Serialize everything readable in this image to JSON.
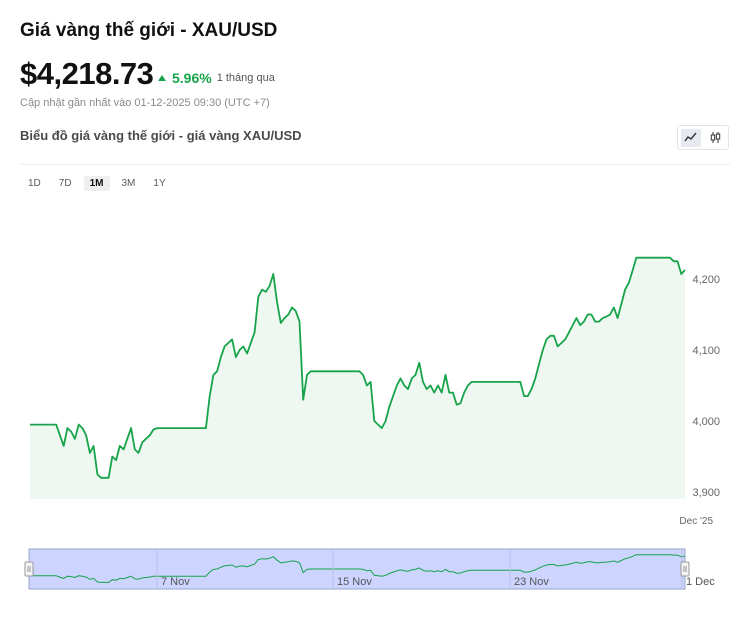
{
  "header": {
    "title": "Giá vàng thế giới - XAU/USD",
    "price": "$4,218.73",
    "change_pct": "5.96%",
    "change_period": "1 tháng qua",
    "updated": "Cập nhật gần nhất vào 01-12-2025 09:30 (UTC +7)"
  },
  "chart_header": {
    "title": "Biểu đồ giá vàng thế giới - giá vàng XAU/USD",
    "view_modes": [
      "line-chart-icon",
      "candlestick-icon"
    ],
    "active_view": "line-chart-icon"
  },
  "ranges": {
    "items": [
      "1D",
      "7D",
      "1M",
      "3M",
      "1Y"
    ],
    "active": "1M"
  },
  "colors": {
    "line": "#16a34a",
    "fill": "#eef8f1",
    "navigator_fill": "#ccd4ff",
    "up": "#16a34a"
  },
  "chart_data": {
    "type": "area",
    "title": "",
    "xlabel": "",
    "ylabel": "",
    "ylim": [
      3900,
      4200
    ],
    "y_ticks": [
      "3,900",
      "4,000",
      "4,100",
      "4,200"
    ],
    "x_tick_labels": [
      "Dec '25"
    ],
    "navigator_labels": [
      "7 Nov",
      "15 Nov",
      "23 Nov",
      "1 Dec"
    ],
    "grid": false,
    "legend": "none",
    "series": [
      {
        "values": [
          3995,
          3995,
          3995,
          3995,
          3995,
          3995,
          3995,
          3995,
          3980,
          3965,
          3990,
          3985,
          3975,
          3995,
          3990,
          3980,
          3955,
          3965,
          3925,
          3920,
          3920,
          3920,
          3950,
          3945,
          3965,
          3960,
          3975,
          3990,
          3960,
          3955,
          3970,
          3975,
          3980,
          3988,
          3990,
          3990,
          3990,
          3990,
          3990,
          3990,
          3990,
          3990,
          3990,
          3990,
          3990,
          3990,
          3990,
          3990,
          4035,
          4065,
          4070,
          4090,
          4105,
          4110,
          4115,
          4090,
          4100,
          4105,
          4095,
          4110,
          4125,
          4175,
          4185,
          4182,
          4190,
          4207,
          4168,
          4138,
          4145,
          4150,
          4160,
          4155,
          4140,
          4030,
          4065,
          4070,
          4070,
          4070,
          4070,
          4070,
          4070,
          4070,
          4070,
          4070,
          4070,
          4070,
          4070,
          4070,
          4070,
          4065,
          4050,
          4055,
          4000,
          3995,
          3990,
          4000,
          4020,
          4035,
          4050,
          4060,
          4050,
          4045,
          4060,
          4065,
          4082,
          4055,
          4045,
          4050,
          4040,
          4050,
          4040,
          4065,
          4040,
          4040,
          4023,
          4025,
          4040,
          4050,
          4055,
          4055,
          4055,
          4055,
          4055,
          4055,
          4055,
          4055,
          4055,
          4055,
          4055,
          4055,
          4055,
          4055,
          4035,
          4035,
          4045,
          4060,
          4080,
          4100,
          4115,
          4120,
          4120,
          4105,
          4110,
          4115,
          4125,
          4135,
          4145,
          4135,
          4140,
          4150,
          4150,
          4140,
          4140,
          4145,
          4147,
          4150,
          4160,
          4145,
          4165,
          4185,
          4195,
          4212,
          4230,
          4230,
          4230,
          4230,
          4230,
          4230,
          4230,
          4230,
          4230,
          4230,
          4225,
          4225,
          4207,
          4213
        ]
      }
    ]
  }
}
